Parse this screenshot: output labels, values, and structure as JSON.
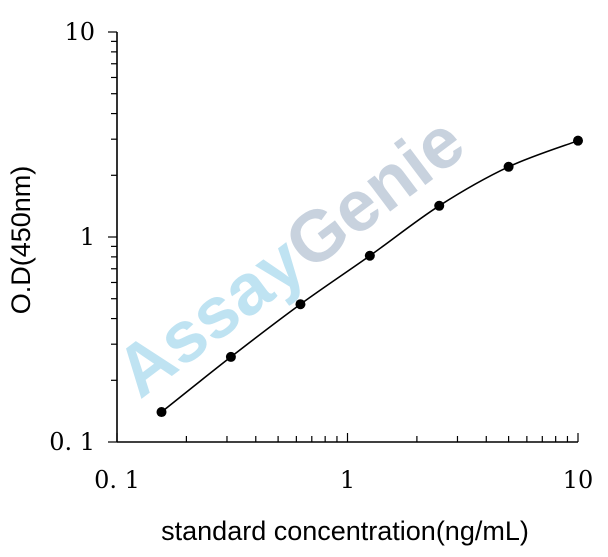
{
  "chart_data": {
    "type": "line",
    "xlabel": "standard concentration(ng/mL)",
    "ylabel": "O.D(450nm)",
    "xscale": "log",
    "yscale": "log",
    "xlim": [
      0.1,
      10
    ],
    "ylim": [
      0.1,
      10
    ],
    "x_tick_labels": [
      "0. 1",
      "1",
      "10"
    ],
    "y_tick_labels": [
      "0. 1",
      "1",
      "10"
    ],
    "grid": false,
    "legend": "none",
    "series": [
      {
        "x": [
          0.156,
          0.312,
          0.625,
          1.25,
          2.5,
          5,
          10
        ],
        "values": [
          0.14,
          0.26,
          0.47,
          0.81,
          1.42,
          2.2,
          2.95
        ]
      }
    ],
    "markers": "filled-circle",
    "line_color": "#000000"
  },
  "watermark": {
    "part1": "Assay",
    "part2": "Genie",
    "color1": "#bfe3f2",
    "color2": "#c8d2de"
  }
}
